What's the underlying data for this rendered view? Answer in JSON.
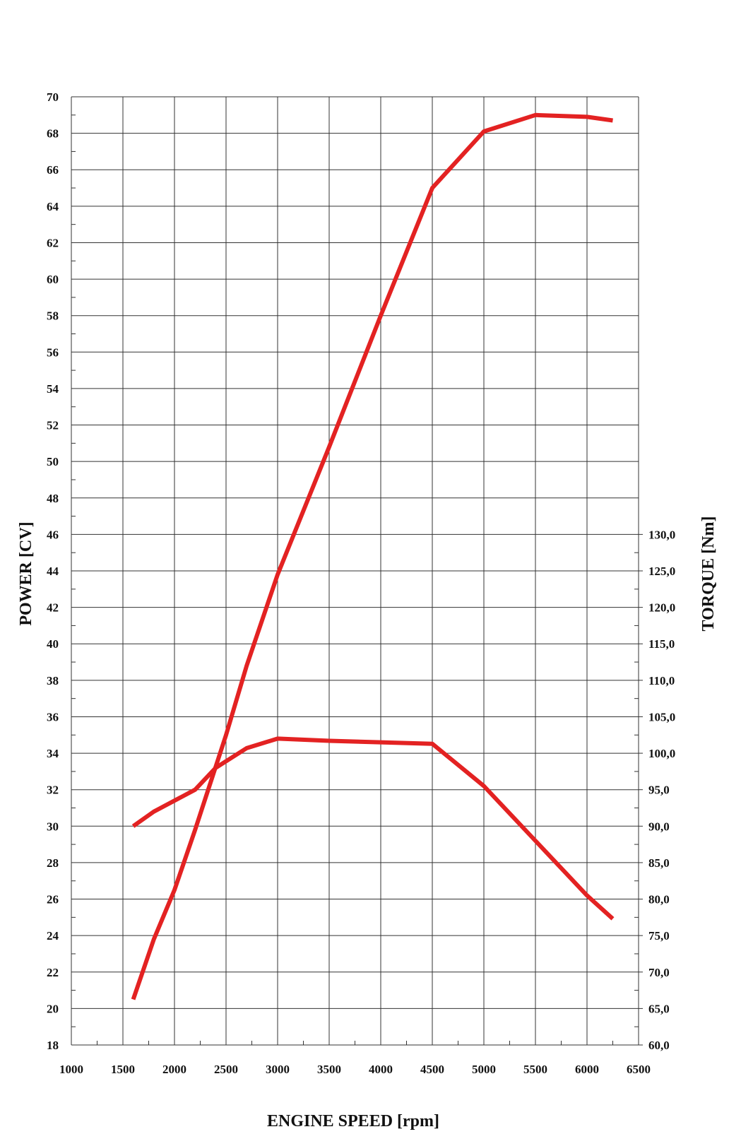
{
  "chart_data": {
    "type": "line",
    "xlabel": "ENGINE SPEED [rpm]",
    "ylabel_left": "POWER [CV]",
    "ylabel_right": "TORQUE [Nm]",
    "xlim": [
      1000,
      6500
    ],
    "ylim_left": [
      18,
      70
    ],
    "ylim_right": [
      60,
      130
    ],
    "x_ticks": [
      "1000",
      "1500",
      "2000",
      "2500",
      "3000",
      "3500",
      "4000",
      "4500",
      "5000",
      "5500",
      "6000",
      "6500"
    ],
    "y_ticks_left": [
      "18",
      "20",
      "22",
      "24",
      "26",
      "28",
      "30",
      "32",
      "34",
      "36",
      "38",
      "40",
      "42",
      "44",
      "46",
      "48",
      "50",
      "52",
      "54",
      "56",
      "58",
      "60",
      "62",
      "64",
      "66",
      "68",
      "70"
    ],
    "y_ticks_right": [
      "60,0",
      "65,0",
      "70,0",
      "75,0",
      "80,0",
      "85,0",
      "90,0",
      "95,0",
      "100,0",
      "105,0",
      "110,0",
      "115,0",
      "120,0",
      "125,0",
      "130,0"
    ],
    "grid": true,
    "line_color": "#e32222",
    "series": [
      {
        "axis": "left",
        "x": [
          1600,
          1800,
          2000,
          2200,
          2500,
          2700,
          3000,
          3500,
          4000,
          4500,
          5000,
          5500,
          6000,
          6250
        ],
        "values": [
          20.5,
          23.8,
          26.5,
          29.8,
          35.0,
          38.8,
          43.8,
          50.8,
          58.0,
          65.0,
          68.1,
          69.0,
          68.9,
          68.7
        ]
      },
      {
        "axis": "right",
        "x": [
          1600,
          1800,
          2000,
          2200,
          2400,
          2700,
          3000,
          3500,
          4000,
          4500,
          5000,
          5500,
          6000,
          6250
        ],
        "values": [
          90.0,
          92.0,
          93.5,
          95.0,
          98.0,
          100.7,
          102.0,
          101.7,
          101.5,
          101.3,
          95.5,
          88.0,
          80.5,
          77.3
        ]
      }
    ]
  }
}
